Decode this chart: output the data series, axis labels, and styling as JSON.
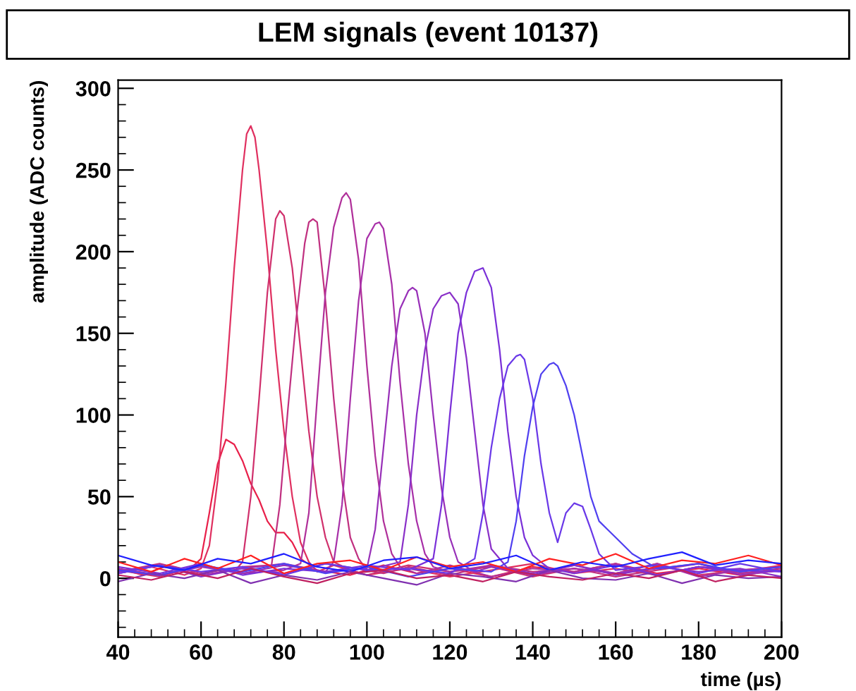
{
  "chart_data": {
    "type": "line",
    "title": "LEM signals (event 10137)",
    "xlabel": "time (µs)",
    "ylabel": "amplitude (ADC counts)",
    "xlim": [
      40,
      200
    ],
    "xticks": [
      40,
      60,
      80,
      100,
      120,
      140,
      160,
      180,
      200
    ],
    "ylim": [
      -36,
      305
    ],
    "yticks": [
      0,
      50,
      100,
      150,
      200,
      250,
      300
    ],
    "grid": false,
    "legend": false,
    "marker": "none",
    "line_style": "solid",
    "series": [
      {
        "color": "#e8204a",
        "x": [
          40,
          46,
          52,
          57,
          60,
          62,
          64,
          66,
          68,
          70,
          72,
          74,
          76,
          78,
          80,
          82,
          84,
          88,
          96,
          104,
          112,
          120,
          130,
          140,
          150,
          160,
          170,
          180,
          190,
          200
        ],
        "values": [
          6,
          2,
          8,
          5,
          12,
          40,
          70,
          85,
          82,
          72,
          58,
          48,
          35,
          28,
          28,
          22,
          12,
          5,
          2,
          8,
          3,
          6,
          1,
          7,
          4,
          9,
          3,
          6,
          2,
          5
        ]
      },
      {
        "color": "#e03060",
        "x": [
          40,
          48,
          56,
          60,
          62,
          64,
          66,
          68,
          70,
          71,
          72,
          73,
          74,
          76,
          78,
          80,
          82,
          84,
          86,
          88,
          92,
          100,
          110,
          120,
          130,
          140,
          150,
          160,
          170,
          180,
          190,
          200
        ],
        "values": [
          3,
          7,
          2,
          6,
          20,
          60,
          120,
          190,
          250,
          272,
          277,
          270,
          250,
          200,
          140,
          90,
          50,
          22,
          10,
          4,
          8,
          2,
          6,
          1,
          5,
          9,
          3,
          6,
          2,
          7,
          4,
          8
        ]
      },
      {
        "color": "#d0306c",
        "x": [
          40,
          50,
          60,
          68,
          70,
          72,
          74,
          76,
          78,
          79,
          80,
          82,
          84,
          86,
          88,
          90,
          92,
          96,
          100,
          110,
          120,
          130,
          140,
          150,
          160,
          170,
          180,
          190,
          200
        ],
        "values": [
          5,
          1,
          8,
          4,
          10,
          50,
          110,
          175,
          220,
          225,
          222,
          190,
          140,
          90,
          50,
          25,
          10,
          5,
          2,
          8,
          4,
          7,
          1,
          6,
          3,
          9,
          2,
          5,
          7
        ]
      },
      {
        "color": "#c03080",
        "x": [
          40,
          50,
          60,
          70,
          77,
          79,
          81,
          83,
          85,
          86,
          87,
          88,
          90,
          92,
          94,
          96,
          98,
          100,
          104,
          110,
          120,
          130,
          140,
          150,
          160,
          170,
          180,
          190,
          200
        ],
        "values": [
          4,
          9,
          3,
          7,
          8,
          45,
          105,
          160,
          205,
          218,
          220,
          218,
          170,
          110,
          60,
          25,
          12,
          5,
          3,
          7,
          2,
          8,
          4,
          6,
          1,
          5,
          9,
          3,
          6
        ]
      },
      {
        "color": "#b0309a",
        "x": [
          40,
          50,
          60,
          70,
          80,
          84,
          86,
          88,
          90,
          92,
          94,
          95,
          96,
          98,
          100,
          102,
          104,
          106,
          108,
          112,
          120,
          130,
          140,
          150,
          160,
          170,
          180,
          190,
          200
        ],
        "values": [
          6,
          2,
          8,
          3,
          5,
          9,
          40,
          110,
          175,
          215,
          233,
          236,
          232,
          195,
          130,
          75,
          35,
          15,
          7,
          3,
          8,
          1,
          6,
          4,
          9,
          2,
          7,
          3,
          5
        ]
      },
      {
        "color": "#a830a8",
        "x": [
          40,
          50,
          60,
          70,
          80,
          90,
          92,
          94,
          96,
          98,
          100,
          102,
          103,
          104,
          106,
          108,
          110,
          112,
          114,
          116,
          120,
          130,
          140,
          150,
          160,
          170,
          180,
          190,
          200
        ],
        "values": [
          3,
          8,
          2,
          6,
          9,
          4,
          10,
          45,
          110,
          170,
          208,
          217,
          218,
          214,
          180,
          120,
          70,
          35,
          15,
          7,
          4,
          8,
          2,
          6,
          3,
          9,
          1,
          5,
          7
        ]
      },
      {
        "color": "#9830b8",
        "x": [
          40,
          50,
          60,
          70,
          80,
          90,
          100,
          102,
          104,
          106,
          108,
          110,
          111,
          112,
          114,
          116,
          118,
          120,
          122,
          126,
          130,
          140,
          150,
          160,
          170,
          180,
          190,
          200
        ],
        "values": [
          5,
          2,
          7,
          3,
          8,
          4,
          6,
          30,
          80,
          130,
          165,
          176,
          178,
          176,
          150,
          100,
          55,
          25,
          10,
          4,
          7,
          2,
          8,
          3,
          6,
          9,
          2,
          5
        ]
      },
      {
        "color": "#8a30c8",
        "x": [
          40,
          50,
          60,
          70,
          80,
          90,
          100,
          108,
          110,
          112,
          114,
          116,
          118,
          120,
          122,
          124,
          126,
          128,
          130,
          134,
          140,
          150,
          160,
          170,
          180,
          190,
          200
        ],
        "values": [
          4,
          8,
          1,
          6,
          3,
          9,
          5,
          10,
          45,
          100,
          140,
          165,
          173,
          175,
          168,
          135,
          90,
          45,
          18,
          6,
          3,
          8,
          2,
          7,
          4,
          6,
          1
        ]
      },
      {
        "color": "#7a30d8",
        "x": [
          40,
          50,
          60,
          70,
          80,
          90,
          100,
          110,
          116,
          118,
          120,
          122,
          124,
          126,
          128,
          130,
          132,
          134,
          136,
          138,
          140,
          144,
          150,
          160,
          170,
          180,
          190,
          200
        ],
        "values": [
          7,
          3,
          9,
          2,
          6,
          4,
          8,
          5,
          12,
          45,
          100,
          150,
          175,
          188,
          190,
          178,
          140,
          90,
          50,
          25,
          14,
          6,
          3,
          8,
          2,
          7,
          5,
          4
        ]
      },
      {
        "color": "#6a38e8",
        "x": [
          40,
          50,
          60,
          70,
          80,
          90,
          100,
          110,
          120,
          126,
          128,
          130,
          132,
          134,
          136,
          137,
          138,
          140,
          142,
          144,
          146,
          148,
          150,
          152,
          154,
          156,
          160,
          170,
          180,
          190,
          200
        ],
        "values": [
          3,
          8,
          4,
          7,
          2,
          9,
          5,
          6,
          3,
          12,
          40,
          80,
          110,
          130,
          136,
          137,
          134,
          110,
          70,
          40,
          22,
          40,
          46,
          44,
          30,
          15,
          5,
          8,
          3,
          9,
          4
        ]
      },
      {
        "color": "#5040f0",
        "x": [
          40,
          50,
          60,
          70,
          80,
          90,
          100,
          110,
          120,
          130,
          134,
          136,
          138,
          140,
          142,
          144,
          145,
          146,
          148,
          150,
          152,
          154,
          156,
          158,
          160,
          164,
          170,
          180,
          190,
          200
        ],
        "values": [
          5,
          2,
          8,
          4,
          9,
          3,
          7,
          1,
          6,
          4,
          10,
          35,
          75,
          105,
          125,
          131,
          132,
          130,
          118,
          100,
          75,
          50,
          35,
          30,
          25,
          15,
          6,
          9,
          4,
          7
        ]
      },
      {
        "color": "#ff2020",
        "x": [
          40,
          48,
          56,
          64,
          72,
          80,
          88,
          96,
          104,
          112,
          120,
          128,
          136,
          144,
          152,
          160,
          168,
          176,
          184,
          192,
          200
        ],
        "values": [
          10,
          4,
          12,
          6,
          14,
          3,
          9,
          11,
          5,
          13,
          7,
          10,
          4,
          12,
          8,
          15,
          6,
          11,
          9,
          14,
          8
        ]
      },
      {
        "color": "#2020ff",
        "x": [
          40,
          48,
          56,
          64,
          72,
          80,
          88,
          96,
          104,
          112,
          120,
          128,
          136,
          144,
          152,
          160,
          168,
          176,
          184,
          192,
          200
        ],
        "values": [
          14,
          8,
          5,
          12,
          9,
          15,
          7,
          4,
          11,
          13,
          6,
          9,
          14,
          5,
          10,
          7,
          12,
          16,
          8,
          11,
          9
        ]
      },
      {
        "color": "#8030b0",
        "x": [
          40,
          48,
          56,
          64,
          72,
          80,
          88,
          96,
          104,
          112,
          120,
          128,
          136,
          144,
          152,
          160,
          168,
          176,
          184,
          192,
          200
        ],
        "values": [
          -2,
          3,
          0,
          5,
          -3,
          2,
          -1,
          4,
          0,
          -4,
          3,
          1,
          -2,
          5,
          0,
          -1,
          3,
          -3,
          2,
          0,
          1
        ]
      },
      {
        "color": "#c02060",
        "x": [
          40,
          48,
          56,
          64,
          72,
          80,
          88,
          96,
          104,
          112,
          120,
          128,
          136,
          144,
          152,
          160,
          168,
          176,
          184,
          192,
          200
        ],
        "values": [
          2,
          -1,
          4,
          0,
          6,
          1,
          -3,
          3,
          5,
          0,
          2,
          -2,
          4,
          1,
          -1,
          3,
          0,
          5,
          -2,
          2,
          0
        ]
      }
    ]
  }
}
